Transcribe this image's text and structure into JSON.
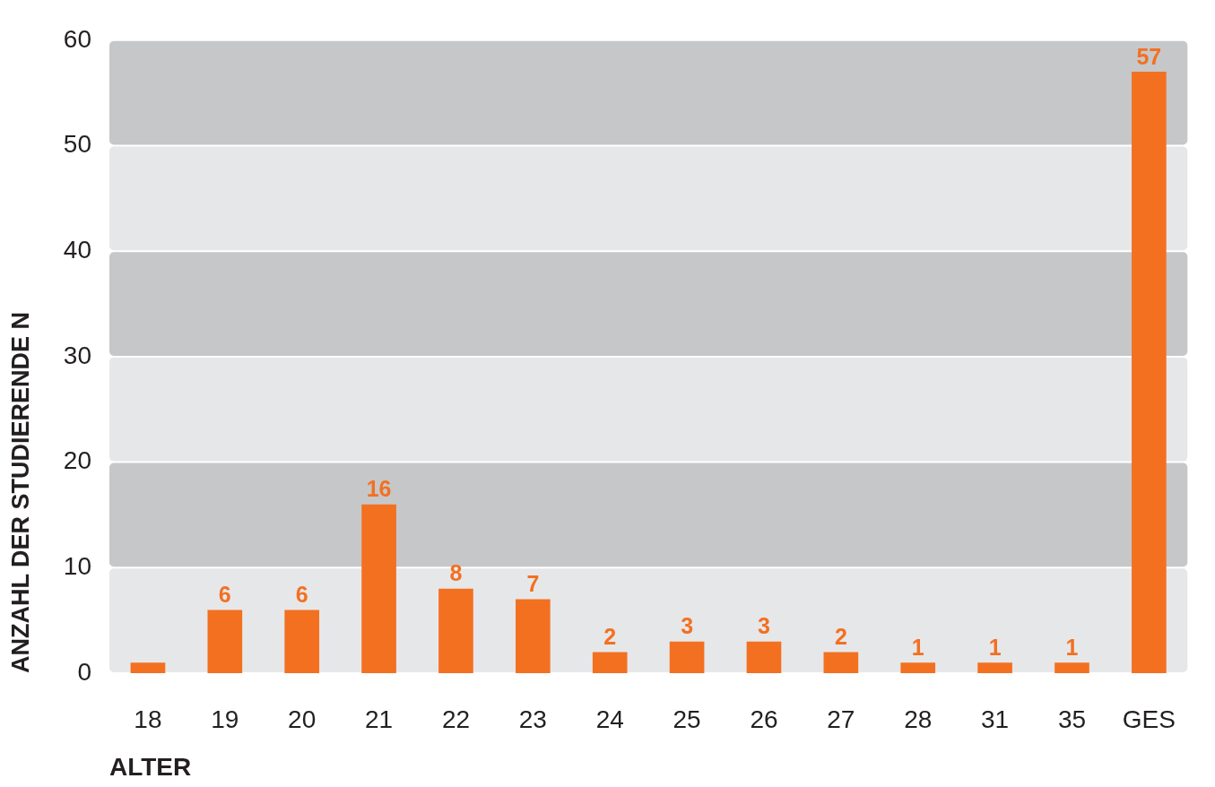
{
  "chart_data": {
    "type": "bar",
    "xlabel": "ALTER",
    "ylabel": "ANZAHL DER STUDIERENDE N",
    "categories": [
      "18",
      "19",
      "20",
      "21",
      "22",
      "23",
      "24",
      "25",
      "26",
      "27",
      "28",
      "31",
      "35",
      "GES"
    ],
    "values": [
      1,
      6,
      6,
      16,
      8,
      7,
      2,
      3,
      3,
      2,
      1,
      1,
      1,
      57
    ],
    "value_labels": [
      null,
      "6",
      "6",
      "16",
      "8",
      "7",
      "2",
      "3",
      "3",
      "2",
      "1",
      "1",
      "1",
      "57"
    ],
    "color": "#f37021",
    "ylim": [
      0,
      60
    ],
    "yticks": [
      0,
      10,
      20,
      30,
      40,
      50,
      60
    ],
    "grid": false,
    "legend": false,
    "bands": [
      {
        "axis": "y",
        "from": 0,
        "to": 10,
        "color": "#e6e7e9"
      },
      {
        "axis": "y",
        "from": 10,
        "to": 20,
        "color": "#c6c7c9"
      },
      {
        "axis": "y",
        "from": 20,
        "to": 30,
        "color": "#e6e7e9"
      },
      {
        "axis": "y",
        "from": 30,
        "to": 40,
        "color": "#c6c7c9"
      },
      {
        "axis": "y",
        "from": 40,
        "to": 50,
        "color": "#e6e7e9"
      },
      {
        "axis": "y",
        "from": 50,
        "to": 60,
        "color": "#c6c7c9"
      }
    ]
  }
}
